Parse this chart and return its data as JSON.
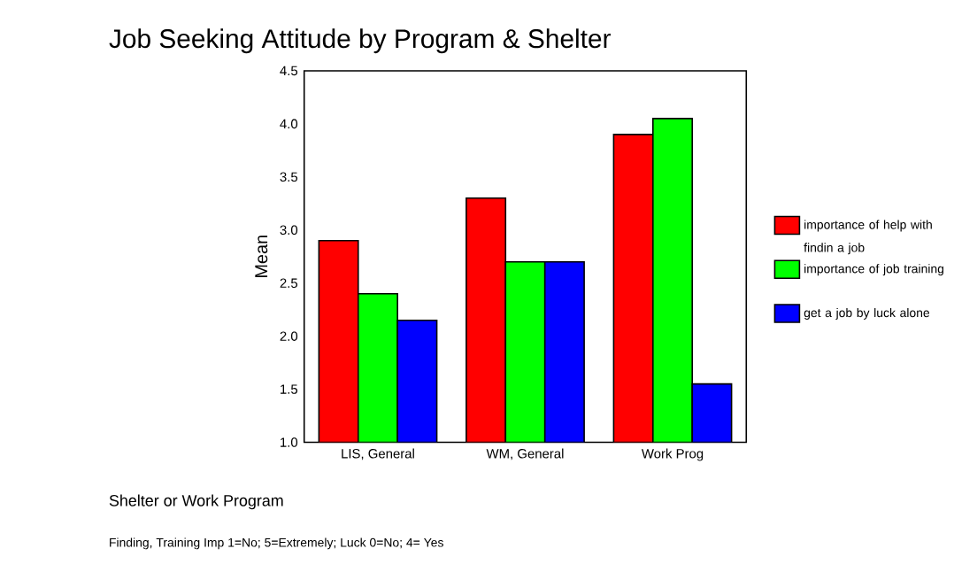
{
  "chart_data": {
    "type": "bar",
    "title": "Job Seeking Attitude by Program & Shelter",
    "xlabel": "Shelter or Work Program",
    "ylabel": "Mean",
    "categories": [
      "LIS, General",
      "WM, General",
      "Work Prog"
    ],
    "series": [
      {
        "name": "importance of help with findin a job",
        "color": "#ff0000",
        "values": [
          2.9,
          3.3,
          3.9
        ]
      },
      {
        "name": "importance of job training",
        "color": "#00ff00",
        "values": [
          2.4,
          2.7,
          4.05
        ]
      },
      {
        "name": "get a job by luck alone",
        "color": "#0000ff",
        "values": [
          2.15,
          2.7,
          1.55
        ]
      }
    ],
    "ylim": [
      1.0,
      4.5
    ],
    "yticks": [
      {
        "value": 1.0,
        "label": "1.0"
      },
      {
        "value": 1.5,
        "label": "1.5"
      },
      {
        "value": 2.0,
        "label": "2.0"
      },
      {
        "value": 2.5,
        "label": "2.5"
      },
      {
        "value": 3.0,
        "label": "3.0"
      },
      {
        "value": 3.5,
        "label": "3.5"
      },
      {
        "value": 4.0,
        "label": "4.0"
      },
      {
        "value": 4.5,
        "label": "4.5"
      }
    ],
    "grid": false,
    "legend": "right",
    "annotations": [
      "Finding, Training Imp 1=No; 5=Extremely; Luck 0=No; 4= Yes"
    ]
  }
}
